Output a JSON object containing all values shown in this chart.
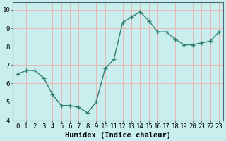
{
  "x": [
    0,
    1,
    2,
    3,
    4,
    5,
    6,
    7,
    8,
    9,
    10,
    11,
    12,
    13,
    14,
    15,
    16,
    17,
    18,
    19,
    20,
    21,
    22,
    23
  ],
  "y": [
    6.5,
    6.7,
    6.7,
    6.3,
    5.4,
    4.8,
    4.8,
    4.7,
    4.4,
    5.0,
    6.8,
    7.3,
    9.3,
    9.6,
    9.9,
    9.4,
    8.8,
    8.8,
    8.4,
    8.1,
    8.1,
    8.2,
    8.3,
    8.8
  ],
  "line_color": "#2e7d6e",
  "marker": "+",
  "markersize": 4,
  "linewidth": 1.0,
  "bg_color": "#c8eeee",
  "grid_color_major": "#e8b8b8",
  "grid_color_minor": "#e8b8b8",
  "xlabel": "Humidex (Indice chaleur)",
  "ylabel": "",
  "title": "",
  "xlim": [
    -0.5,
    23.5
  ],
  "ylim": [
    4,
    10.4
  ],
  "yticks": [
    4,
    5,
    6,
    7,
    8,
    9,
    10
  ],
  "xticks": [
    0,
    1,
    2,
    3,
    4,
    5,
    6,
    7,
    8,
    9,
    10,
    11,
    12,
    13,
    14,
    15,
    16,
    17,
    18,
    19,
    20,
    21,
    22,
    23
  ],
  "xlabel_fontsize": 7.5,
  "tick_fontsize": 6.5
}
